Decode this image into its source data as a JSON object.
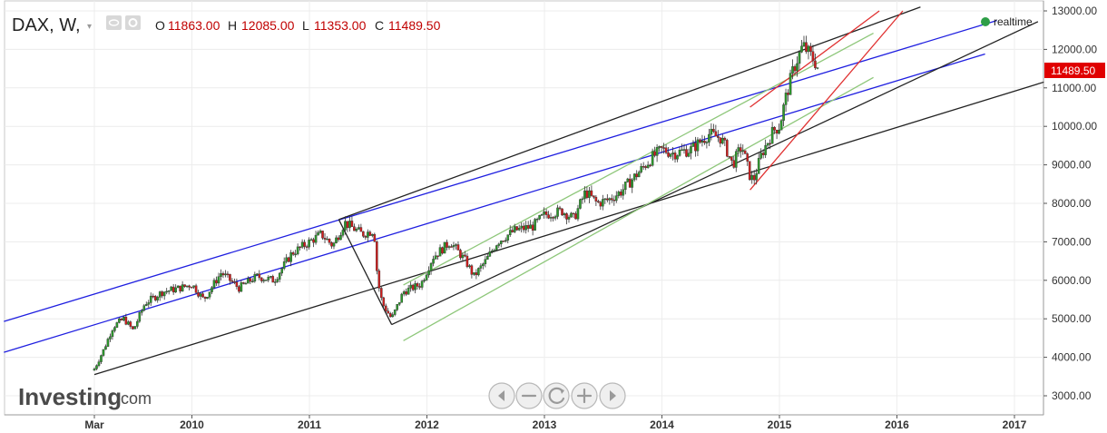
{
  "header": {
    "symbol": "DAX, W,",
    "open_label": "O",
    "open_value": "11863.00",
    "high_label": "H",
    "high_value": "12085.00",
    "low_label": "L",
    "low_value": "11353.00",
    "close_label": "C",
    "close_value": "11489.50"
  },
  "realtime": {
    "label": "realtime",
    "color": "#2e9e47"
  },
  "last_price": {
    "label": "11489.50",
    "color": "#e00000"
  },
  "logo": {
    "main": "Investing",
    "suffix": ".com"
  },
  "nav_icons": [
    "scroll-left-icon",
    "zoom-out-icon",
    "reset-icon",
    "zoom-in-icon",
    "scroll-right-icon"
  ],
  "chart_data": {
    "type": "candlestick",
    "symbol": "DAX",
    "interval": "W",
    "y_ticks": [
      "13000.00",
      "12000.00",
      "11000.00",
      "10000.00",
      "9000.00",
      "8000.00",
      "7000.00",
      "6000.00",
      "5000.00",
      "4000.00",
      "3000.00"
    ],
    "ylim": [
      2800,
      13100
    ],
    "x_ticks": [
      {
        "label": "Mar",
        "t": 2009.17
      },
      {
        "label": "2010",
        "t": 2010.0
      },
      {
        "label": "2011",
        "t": 2011.0
      },
      {
        "label": "2012",
        "t": 2012.0
      },
      {
        "label": "2013",
        "t": 2013.0
      },
      {
        "label": "2014",
        "t": 2014.0
      },
      {
        "label": "2015",
        "t": 2015.0
      },
      {
        "label": "2016",
        "t": 2016.0
      },
      {
        "label": "2017",
        "t": 2017.0
      }
    ],
    "xlim": [
      2008.3,
      2017.25
    ],
    "price_path": [
      [
        2009.17,
        3700
      ],
      [
        2009.25,
        4200
      ],
      [
        2009.33,
        4800
      ],
      [
        2009.42,
        5000
      ],
      [
        2009.5,
        4700
      ],
      [
        2009.6,
        5400
      ],
      [
        2009.75,
        5700
      ],
      [
        2009.9,
        5800
      ],
      [
        2010.0,
        5900
      ],
      [
        2010.1,
        5500
      ],
      [
        2010.25,
        6200
      ],
      [
        2010.4,
        5800
      ],
      [
        2010.55,
        6100
      ],
      [
        2010.7,
        6000
      ],
      [
        2010.85,
        6700
      ],
      [
        2011.0,
        7000
      ],
      [
        2011.1,
        7200
      ],
      [
        2011.2,
        6900
      ],
      [
        2011.3,
        7500
      ],
      [
        2011.45,
        7200
      ],
      [
        2011.55,
        7300
      ],
      [
        2011.58,
        6000
      ],
      [
        2011.62,
        5400
      ],
      [
        2011.7,
        5000
      ],
      [
        2011.8,
        5700
      ],
      [
        2011.95,
        5900
      ],
      [
        2012.05,
        6600
      ],
      [
        2012.2,
        7000
      ],
      [
        2012.33,
        6500
      ],
      [
        2012.4,
        6100
      ],
      [
        2012.5,
        6500
      ],
      [
        2012.6,
        7000
      ],
      [
        2012.75,
        7300
      ],
      [
        2012.9,
        7400
      ],
      [
        2013.0,
        7700
      ],
      [
        2013.15,
        7800
      ],
      [
        2013.25,
        7600
      ],
      [
        2013.35,
        8300
      ],
      [
        2013.45,
        8000
      ],
      [
        2013.55,
        8100
      ],
      [
        2013.65,
        8300
      ],
      [
        2013.8,
        8800
      ],
      [
        2013.92,
        9200
      ],
      [
        2014.0,
        9400
      ],
      [
        2014.1,
        9300
      ],
      [
        2014.25,
        9400
      ],
      [
        2014.4,
        9800
      ],
      [
        2014.5,
        9700
      ],
      [
        2014.55,
        9400
      ],
      [
        2014.6,
        9000
      ],
      [
        2014.68,
        9500
      ],
      [
        2014.75,
        8700
      ],
      [
        2014.78,
        8600
      ],
      [
        2014.85,
        9300
      ],
      [
        2014.95,
        9900
      ],
      [
        2015.0,
        10000
      ],
      [
        2015.05,
        10700
      ],
      [
        2015.12,
        11500
      ],
      [
        2015.2,
        12100
      ],
      [
        2015.25,
        11900
      ],
      [
        2015.3,
        11700
      ],
      [
        2015.33,
        11489.5
      ]
    ],
    "trend_lines": [
      {
        "color": "#1f1fe0",
        "points": [
          [
            2008.4,
            4930
          ],
          [
            2016.85,
            12750
          ]
        ]
      },
      {
        "color": "#1f1fe0",
        "points": [
          [
            2008.4,
            4130
          ],
          [
            2016.75,
            11880
          ]
        ]
      },
      {
        "color": "#222222",
        "points": [
          [
            2009.17,
            3550
          ],
          [
            2017.25,
            11150
          ]
        ]
      },
      {
        "color": "#222222",
        "points": [
          [
            2011.25,
            7580
          ],
          [
            2016.2,
            13100
          ]
        ]
      },
      {
        "color": "#222222",
        "points": [
          [
            2011.7,
            4850
          ],
          [
            2017.2,
            12720
          ]
        ]
      },
      {
        "color": "#222222",
        "points": [
          [
            2011.25,
            7580
          ],
          [
            2011.7,
            4850
          ]
        ]
      },
      {
        "color": "#8ec77a",
        "points": [
          [
            2011.8,
            4430
          ],
          [
            2015.8,
            11270
          ]
        ]
      },
      {
        "color": "#8ec77a",
        "points": [
          [
            2011.8,
            5880
          ],
          [
            2015.8,
            12420
          ]
        ]
      },
      {
        "color": "#e03030",
        "points": [
          [
            2014.75,
            8350
          ],
          [
            2016.05,
            13000
          ]
        ]
      },
      {
        "color": "#e03030",
        "points": [
          [
            2014.75,
            10500
          ],
          [
            2015.85,
            13000
          ]
        ]
      }
    ]
  }
}
